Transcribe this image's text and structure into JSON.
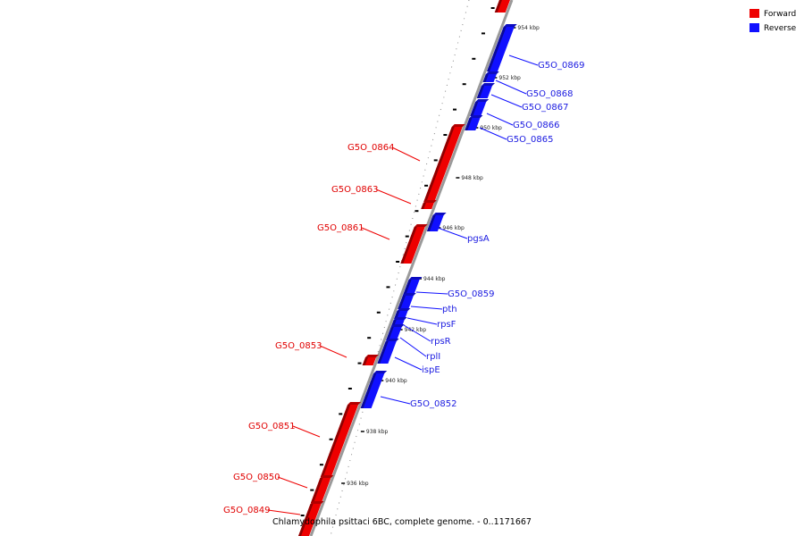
{
  "legend": [
    {
      "label": "Forward",
      "color": "#ee0000"
    },
    {
      "label": "Reverse",
      "color": "#1010ff"
    }
  ],
  "caption": "Chlamydophila psittaci 6BC, complete genome. - 0..1171667",
  "colors": {
    "forward": "#ee0000",
    "reverse": "#1010ff",
    "backbone": "#9a9a9a"
  },
  "scale_labels": [
    "954 kbp",
    "952 kbp",
    "950 kbp",
    "948 kbp",
    "946 kbp",
    "944 kbp",
    "942 kbp",
    "940 kbp",
    "938 kbp",
    "936 kbp"
  ],
  "forward_genes": [
    "G5O_0864",
    "G5O_0863",
    "G5O_0861",
    "G5O_0853",
    "G5O_0851",
    "G5O_0850",
    "G5O_0849"
  ],
  "reverse_genes": [
    "G5O_0869",
    "G5O_0868",
    "G5O_0867",
    "G5O_0866",
    "G5O_0865",
    "pgsA",
    "G5O_0859",
    "pth",
    "rpsF",
    "rpsR",
    "rplI",
    "ispE",
    "G5O_0852"
  ]
}
